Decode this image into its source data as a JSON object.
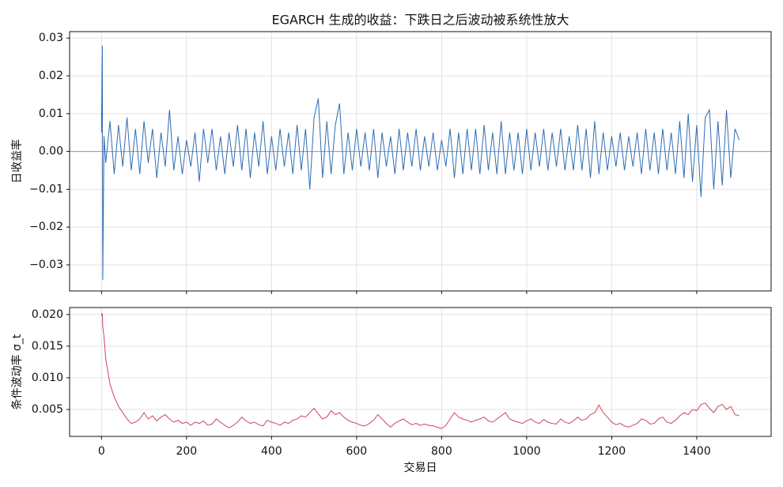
{
  "chart_data": [
    {
      "type": "line",
      "title": "EGARCH 生成的收益：下跌日之后波动被系统性放大",
      "ylabel": "日收益率",
      "x": [
        0,
        2,
        3,
        6,
        10,
        20,
        30,
        40,
        50,
        60,
        70,
        80,
        90,
        100,
        110,
        120,
        130,
        140,
        150,
        160,
        170,
        180,
        190,
        200,
        210,
        220,
        230,
        240,
        250,
        260,
        270,
        280,
        290,
        300,
        310,
        320,
        330,
        340,
        350,
        360,
        370,
        380,
        390,
        400,
        410,
        420,
        430,
        440,
        450,
        460,
        470,
        480,
        490,
        500,
        510,
        520,
        530,
        540,
        550,
        560,
        570,
        580,
        590,
        600,
        610,
        620,
        630,
        640,
        650,
        660,
        670,
        680,
        690,
        700,
        710,
        720,
        730,
        740,
        750,
        760,
        770,
        780,
        790,
        800,
        810,
        820,
        830,
        840,
        850,
        860,
        870,
        880,
        890,
        900,
        910,
        920,
        930,
        940,
        950,
        960,
        970,
        980,
        990,
        1000,
        1010,
        1020,
        1030,
        1040,
        1050,
        1060,
        1070,
        1080,
        1090,
        1100,
        1110,
        1120,
        1130,
        1140,
        1150,
        1160,
        1170,
        1180,
        1190,
        1200,
        1210,
        1220,
        1230,
        1240,
        1250,
        1260,
        1270,
        1280,
        1290,
        1300,
        1310,
        1320,
        1330,
        1340,
        1350,
        1360,
        1370,
        1380,
        1390,
        1400,
        1410,
        1420,
        1430,
        1440,
        1450,
        1460,
        1470,
        1480,
        1490,
        1500
      ],
      "series": [
        {
          "color": "#2f6db5",
          "values": [
            0.005,
            0.028,
            -0.034,
            0.004,
            -0.003,
            0.008,
            -0.006,
            0.007,
            -0.004,
            0.009,
            -0.005,
            0.006,
            -0.006,
            0.008,
            -0.003,
            0.006,
            -0.007,
            0.005,
            -0.004,
            0.011,
            -0.005,
            0.004,
            -0.006,
            0.003,
            -0.004,
            0.005,
            -0.008,
            0.006,
            -0.003,
            0.006,
            -0.005,
            0.004,
            -0.006,
            0.005,
            -0.004,
            0.007,
            -0.005,
            0.006,
            -0.007,
            0.005,
            -0.004,
            0.008,
            -0.006,
            0.004,
            -0.005,
            0.006,
            -0.004,
            0.005,
            -0.006,
            0.007,
            -0.005,
            0.006,
            -0.01,
            0.009,
            0.014,
            -0.007,
            0.008,
            -0.006,
            0.007,
            0.0127,
            -0.006,
            0.005,
            -0.005,
            0.006,
            -0.004,
            0.005,
            -0.005,
            0.006,
            -0.007,
            0.005,
            -0.004,
            0.004,
            -0.006,
            0.006,
            -0.005,
            0.005,
            -0.004,
            0.006,
            -0.005,
            0.004,
            -0.004,
            0.005,
            -0.005,
            0.003,
            -0.004,
            0.006,
            -0.007,
            0.005,
            -0.006,
            0.006,
            -0.005,
            0.006,
            -0.006,
            0.007,
            -0.005,
            0.005,
            -0.006,
            0.008,
            -0.006,
            0.005,
            -0.005,
            0.005,
            -0.006,
            0.006,
            -0.005,
            0.005,
            -0.004,
            0.006,
            -0.005,
            0.005,
            -0.004,
            0.006,
            -0.005,
            0.004,
            -0.005,
            0.007,
            -0.005,
            0.006,
            -0.007,
            0.008,
            -0.006,
            0.005,
            -0.005,
            0.004,
            -0.004,
            0.005,
            -0.005,
            0.004,
            -0.004,
            0.005,
            -0.006,
            0.006,
            -0.005,
            0.005,
            -0.006,
            0.006,
            -0.005,
            0.005,
            -0.006,
            0.008,
            -0.007,
            0.01,
            -0.008,
            0.007,
            -0.012,
            0.009,
            0.011,
            -0.01,
            0.008,
            -0.009,
            0.011,
            -0.007,
            0.006,
            0.003
          ]
        }
      ],
      "hline": 0,
      "xlim": [
        -75,
        1575
      ],
      "xticks": [
        0,
        200,
        400,
        600,
        800,
        1000,
        1200,
        1400
      ],
      "ylim": [
        -0.0369,
        0.0317
      ],
      "yticks": [
        {
          "value": -0.03,
          "label": "−0.03"
        },
        {
          "value": -0.02,
          "label": "−0.02"
        },
        {
          "value": -0.01,
          "label": "−0.01"
        },
        {
          "value": 0,
          "label": "0.00"
        },
        0.01,
        0.02,
        0.03
      ],
      "grid": true
    },
    {
      "type": "line",
      "ylabel": "条件波动率 σ_t",
      "xlabel": "交易日",
      "x": [
        0,
        2,
        3,
        6,
        10,
        20,
        30,
        40,
        50,
        60,
        70,
        80,
        90,
        100,
        110,
        120,
        130,
        140,
        150,
        160,
        170,
        180,
        190,
        200,
        210,
        220,
        230,
        240,
        250,
        260,
        270,
        280,
        290,
        300,
        310,
        320,
        330,
        340,
        350,
        360,
        370,
        380,
        390,
        400,
        410,
        420,
        430,
        440,
        450,
        460,
        470,
        480,
        490,
        500,
        510,
        520,
        530,
        540,
        550,
        560,
        570,
        580,
        590,
        600,
        610,
        620,
        630,
        640,
        650,
        660,
        670,
        680,
        690,
        700,
        710,
        720,
        730,
        740,
        750,
        760,
        770,
        780,
        790,
        800,
        810,
        820,
        830,
        840,
        850,
        860,
        870,
        880,
        890,
        900,
        910,
        920,
        930,
        940,
        950,
        960,
        970,
        980,
        990,
        1000,
        1010,
        1020,
        1030,
        1040,
        1050,
        1060,
        1070,
        1080,
        1090,
        1100,
        1110,
        1120,
        1130,
        1140,
        1150,
        1160,
        1170,
        1180,
        1190,
        1200,
        1210,
        1220,
        1230,
        1240,
        1250,
        1260,
        1270,
        1280,
        1290,
        1300,
        1310,
        1320,
        1330,
        1340,
        1350,
        1360,
        1370,
        1380,
        1390,
        1400,
        1410,
        1420,
        1430,
        1440,
        1450,
        1460,
        1470,
        1480,
        1490,
        1500
      ],
      "series": [
        {
          "color": "#d0455a",
          "values": [
            0.0198,
            0.0202,
            0.018,
            0.0165,
            0.013,
            0.009,
            0.007,
            0.0055,
            0.0045,
            0.0035,
            0.0028,
            0.003,
            0.0035,
            0.0045,
            0.0035,
            0.004,
            0.0032,
            0.0038,
            0.0042,
            0.0035,
            0.003,
            0.0033,
            0.0028,
            0.003,
            0.0025,
            0.003,
            0.0028,
            0.0032,
            0.0025,
            0.0027,
            0.0035,
            0.003,
            0.0025,
            0.0021,
            0.0025,
            0.003,
            0.0038,
            0.0032,
            0.0028,
            0.003,
            0.0026,
            0.0024,
            0.0033,
            0.003,
            0.0028,
            0.0025,
            0.003,
            0.0028,
            0.0033,
            0.0035,
            0.004,
            0.0038,
            0.0045,
            0.0052,
            0.0043,
            0.0035,
            0.0038,
            0.0048,
            0.0042,
            0.0045,
            0.0038,
            0.0033,
            0.003,
            0.0028,
            0.0025,
            0.0024,
            0.0028,
            0.0033,
            0.0042,
            0.0035,
            0.0028,
            0.0022,
            0.0028,
            0.0032,
            0.0035,
            0.003,
            0.0026,
            0.0028,
            0.0025,
            0.0027,
            0.0025,
            0.0024,
            0.0022,
            0.002,
            0.0025,
            0.0035,
            0.0045,
            0.0038,
            0.0035,
            0.0033,
            0.003,
            0.0033,
            0.0035,
            0.0038,
            0.0032,
            0.003,
            0.0035,
            0.004,
            0.0045,
            0.0035,
            0.0032,
            0.003,
            0.0028,
            0.0032,
            0.0035,
            0.003,
            0.0028,
            0.0034,
            0.003,
            0.0028,
            0.0027,
            0.0035,
            0.003,
            0.0028,
            0.0032,
            0.0038,
            0.0033,
            0.0035,
            0.0042,
            0.0045,
            0.0057,
            0.0045,
            0.0038,
            0.003,
            0.0026,
            0.0028,
            0.0024,
            0.0022,
            0.0025,
            0.0028,
            0.0035,
            0.0033,
            0.0027,
            0.0028,
            0.0035,
            0.0038,
            0.003,
            0.0028,
            0.0033,
            0.004,
            0.0045,
            0.0042,
            0.005,
            0.0048,
            0.0058,
            0.006,
            0.0052,
            0.0045,
            0.0055,
            0.0058,
            0.005,
            0.0055,
            0.0042,
            0.004
          ]
        }
      ],
      "xlim": [
        -75,
        1575
      ],
      "xticks": [
        0,
        200,
        400,
        600,
        800,
        1000,
        1200,
        1400
      ],
      "ylim": [
        0.00075,
        0.0211
      ],
      "yticks": [
        0.005,
        {
          "value": 0.01,
          "label": "0.010"
        },
        0.015,
        {
          "value": 0.02,
          "label": "0.020"
        }
      ],
      "grid": true
    }
  ]
}
